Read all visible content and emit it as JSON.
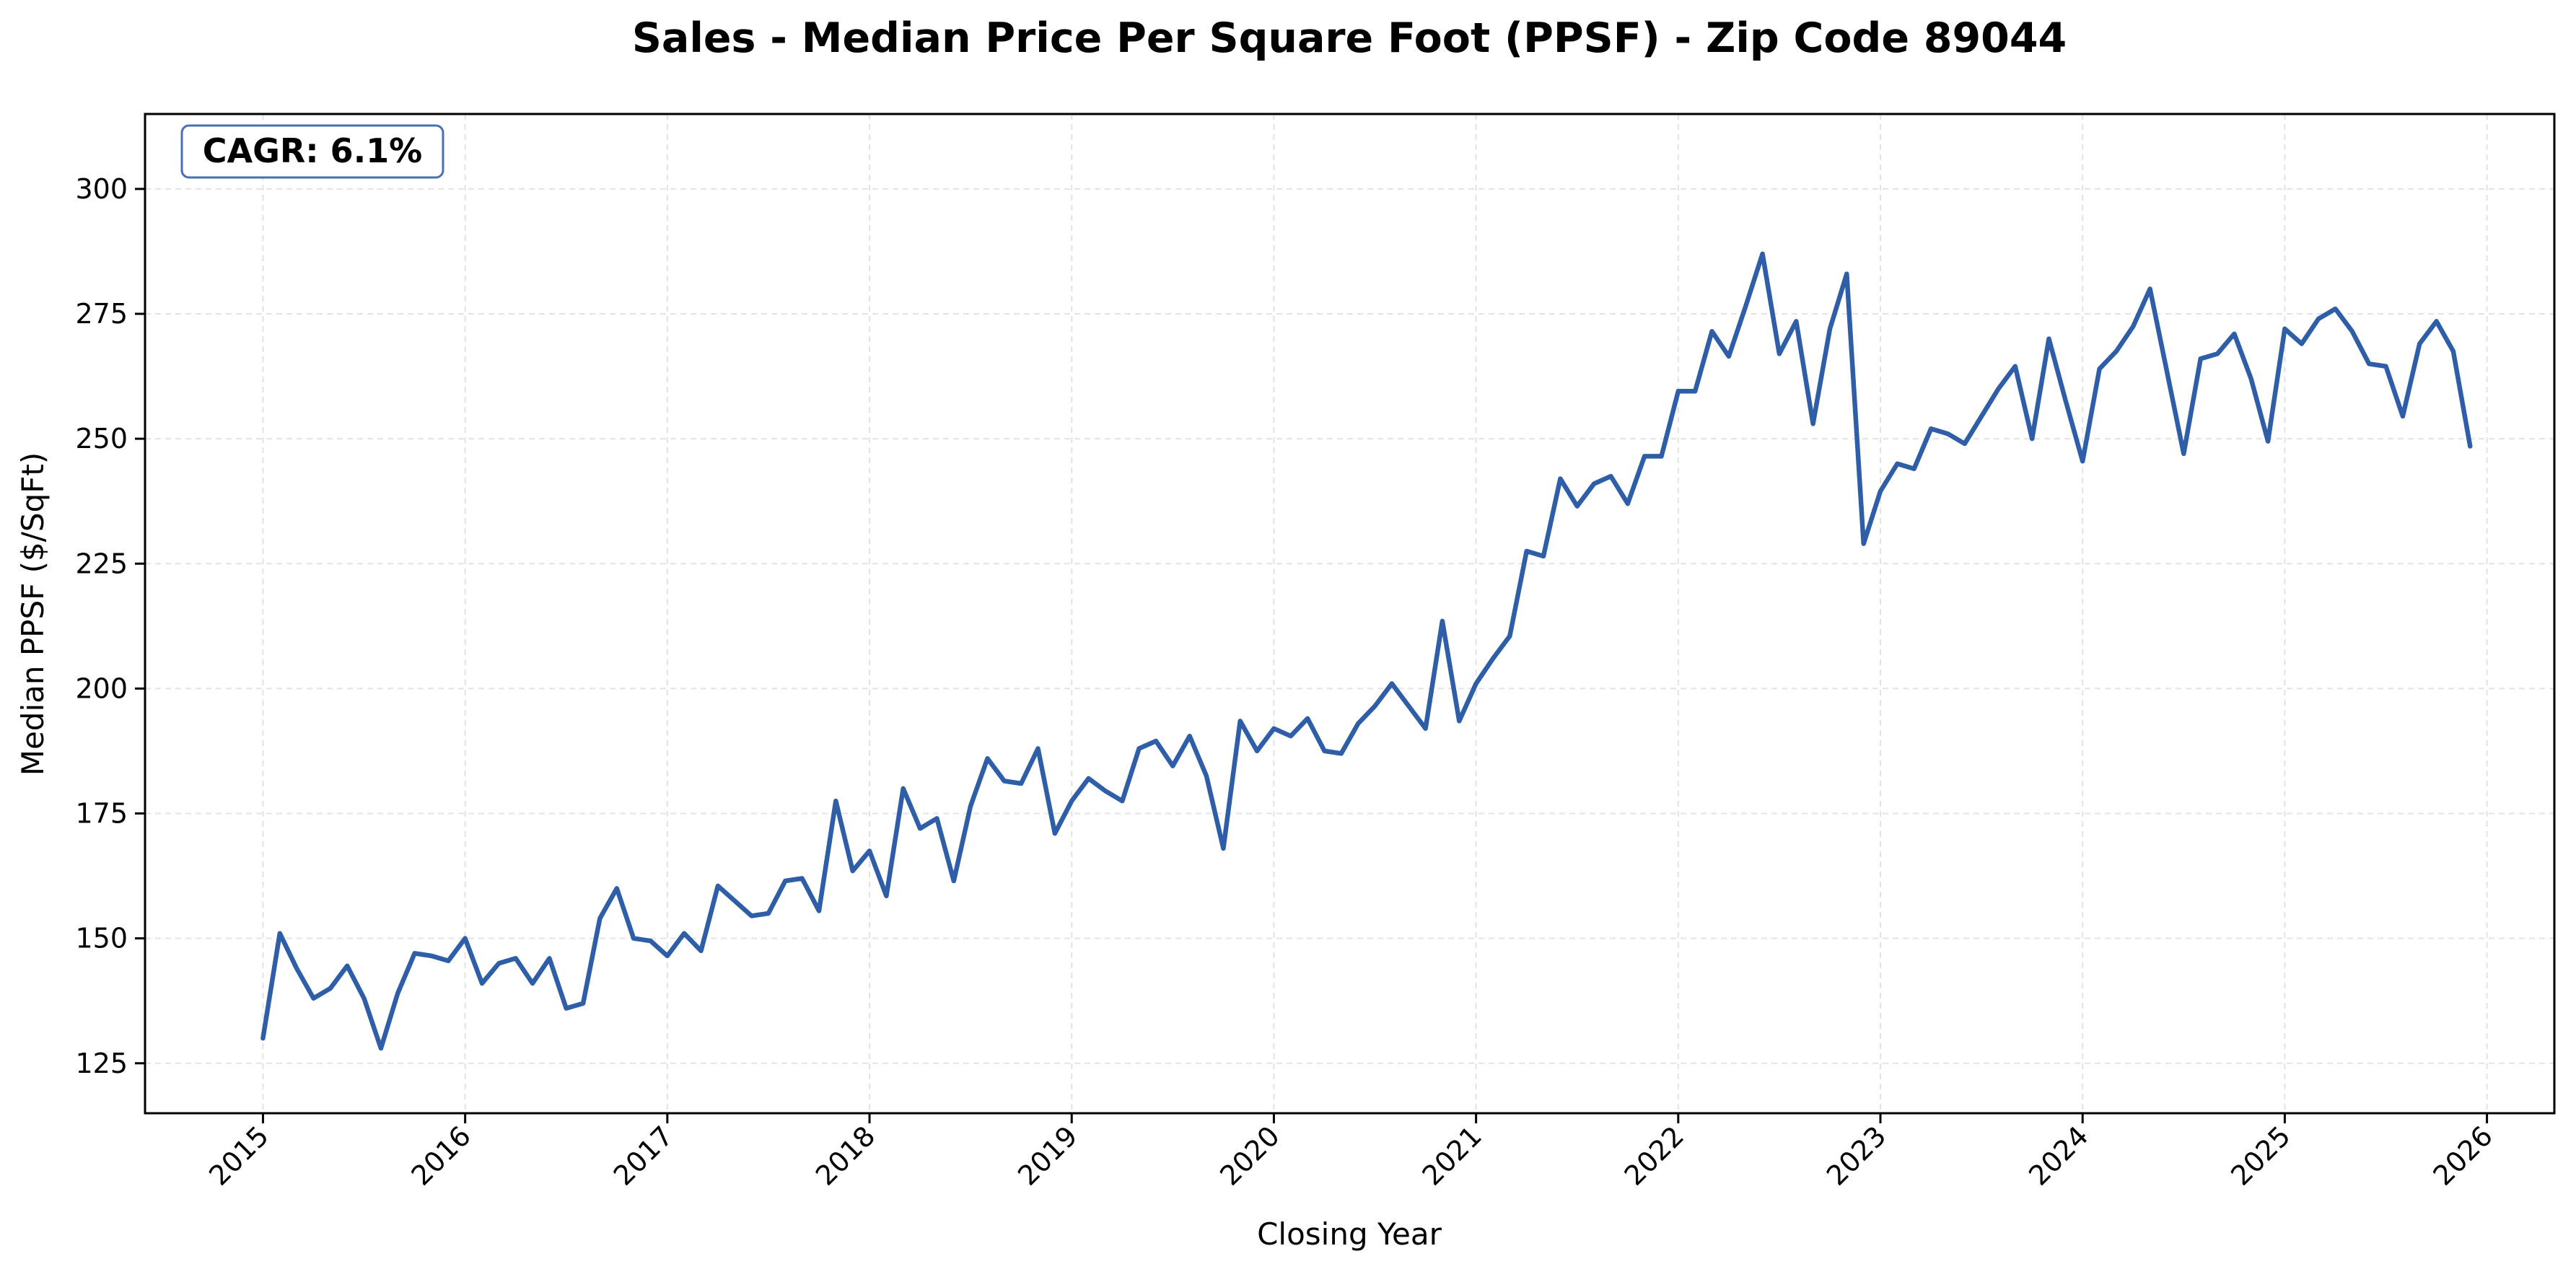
{
  "chart_data": {
    "type": "line",
    "title": "Sales - Median Price Per Square Foot (PPSF) - Zip Code 89044",
    "xlabel": "Closing Year",
    "ylabel": "Median PPSF ($/SqFt)",
    "annotation": "CAGR: 6.1%",
    "x_ticks": [
      "2015",
      "2016",
      "2017",
      "2018",
      "2019",
      "2020",
      "2021",
      "2022",
      "2023",
      "2024",
      "2025",
      "2026"
    ],
    "y_ticks": [
      125,
      150,
      175,
      200,
      225,
      250,
      275,
      300
    ],
    "xlim": [
      "2014-06",
      "2026-05"
    ],
    "ylim": [
      115,
      315
    ],
    "grid": true,
    "line_color": "#2f5ea8",
    "series": [
      {
        "x": [
          "2015-01",
          "2015-02",
          "2015-03",
          "2015-04",
          "2015-05",
          "2015-06",
          "2015-07",
          "2015-08",
          "2015-09",
          "2015-10",
          "2015-11",
          "2015-12",
          "2016-01",
          "2016-02",
          "2016-03",
          "2016-04",
          "2016-05",
          "2016-06",
          "2016-07",
          "2016-08",
          "2016-09",
          "2016-10",
          "2016-11",
          "2016-12",
          "2017-01",
          "2017-02",
          "2017-03",
          "2017-04",
          "2017-05",
          "2017-06",
          "2017-07",
          "2017-08",
          "2017-09",
          "2017-10",
          "2017-11",
          "2017-12",
          "2018-01",
          "2018-02",
          "2018-03",
          "2018-04",
          "2018-05",
          "2018-06",
          "2018-07",
          "2018-08",
          "2018-09",
          "2018-10",
          "2018-11",
          "2018-12",
          "2019-01",
          "2019-02",
          "2019-03",
          "2019-04",
          "2019-05",
          "2019-06",
          "2019-07",
          "2019-08",
          "2019-09",
          "2019-10",
          "2019-11",
          "2019-12",
          "2020-01",
          "2020-02",
          "2020-03",
          "2020-04",
          "2020-05",
          "2020-06",
          "2020-07",
          "2020-08",
          "2020-09",
          "2020-10",
          "2020-11",
          "2020-12",
          "2021-01",
          "2021-02",
          "2021-03",
          "2021-04",
          "2021-05",
          "2021-06",
          "2021-07",
          "2021-08",
          "2021-09",
          "2021-10",
          "2021-11",
          "2021-12",
          "2022-01",
          "2022-02",
          "2022-03",
          "2022-04",
          "2022-05",
          "2022-06",
          "2022-07",
          "2022-08",
          "2022-09",
          "2022-10",
          "2022-11",
          "2022-12",
          "2023-01",
          "2023-02",
          "2023-03",
          "2023-04",
          "2023-05",
          "2023-06",
          "2023-07",
          "2023-08",
          "2023-09",
          "2023-10",
          "2023-11",
          "2023-12",
          "2024-01",
          "2024-02",
          "2024-03",
          "2024-04",
          "2024-05",
          "2024-06",
          "2024-07",
          "2024-08",
          "2024-09",
          "2024-10",
          "2024-11",
          "2024-12",
          "2025-01",
          "2025-02",
          "2025-03",
          "2025-04",
          "2025-05",
          "2025-06",
          "2025-07",
          "2025-08",
          "2025-09",
          "2025-10",
          "2025-11",
          "2025-12"
        ],
        "values": [
          130,
          151,
          144,
          138,
          140,
          144.5,
          138,
          128,
          139,
          147,
          146.5,
          145.5,
          150,
          141,
          145,
          146,
          141,
          146,
          136,
          137,
          154,
          160,
          150,
          149.5,
          146.5,
          151,
          147.5,
          160.5,
          157.5,
          154.5,
          155,
          161.5,
          162,
          155.5,
          177.5,
          163.5,
          167.5,
          158.5,
          180,
          172,
          174,
          161.5,
          176.5,
          186,
          181.5,
          181,
          188,
          171,
          177.5,
          182,
          179.5,
          177.5,
          188,
          189.5,
          184.5,
          190.5,
          182.5,
          168,
          193.5,
          187.5,
          192,
          190.5,
          194,
          187.5,
          187,
          193,
          196.5,
          201,
          196.5,
          192,
          213.5,
          193.5,
          201,
          206,
          210.5,
          227.5,
          226.5,
          242,
          236.5,
          241,
          242.5,
          237,
          246.5,
          246.5,
          259.5,
          259.5,
          271.5,
          266.5,
          276.5,
          287,
          267,
          273.5,
          253,
          272,
          283,
          229,
          239.5,
          245,
          244,
          252,
          251,
          249,
          254.5,
          260,
          264.5,
          250,
          270,
          257.5,
          245.5,
          264,
          267.5,
          272.5,
          280,
          263.5,
          247,
          266,
          267,
          271,
          262,
          249.5,
          272,
          269,
          274,
          276,
          271.5,
          265,
          264.5,
          254.5,
          269,
          273.5,
          267.5,
          248.5
        ]
      }
    ]
  }
}
